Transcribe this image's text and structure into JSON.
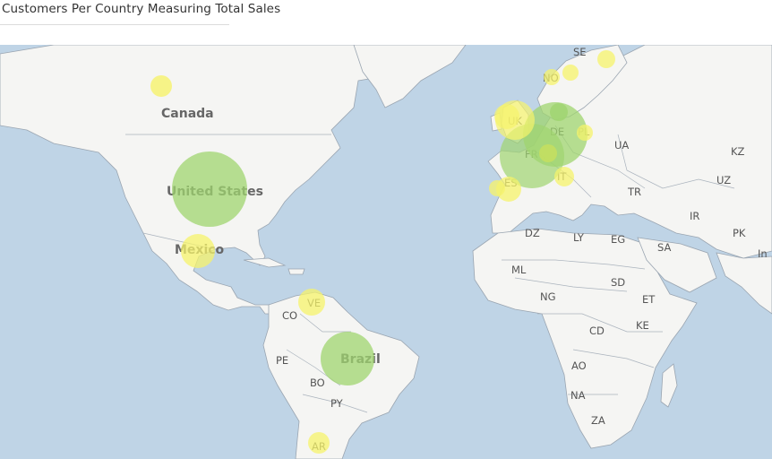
{
  "title": "Customers Per Country Measuring Total Sales",
  "colors": {
    "ocean": "#bfd4e6",
    "land": "#f5f5f3",
    "border": "#9aa5b1",
    "bubble_large": "#9fd46f",
    "bubble_small": "#f6f36b"
  },
  "labels": {
    "canada": "Canada",
    "united_states": "United States",
    "mexico": "Mexico",
    "brazil": "Brazil",
    "ve": "VE",
    "co": "CO",
    "pe": "PE",
    "bo": "BO",
    "py": "PY",
    "ar": "AR",
    "uk": "UK",
    "fr": "FR",
    "de": "DE",
    "pl": "PL",
    "es": "ES",
    "it": "IT",
    "se": "SE",
    "no": "NO",
    "ua": "UA",
    "tr": "TR",
    "kz": "KZ",
    "uz": "UZ",
    "ir": "IR",
    "pk": "PK",
    "in": "In",
    "dz": "DZ",
    "ly": "LY",
    "eg": "EG",
    "sa": "SA",
    "ml": "ML",
    "ng": "NG",
    "sd": "SD",
    "et": "ET",
    "ke": "KE",
    "cd": "CD",
    "ao": "AO",
    "na": "NA",
    "za": "ZA"
  }
}
